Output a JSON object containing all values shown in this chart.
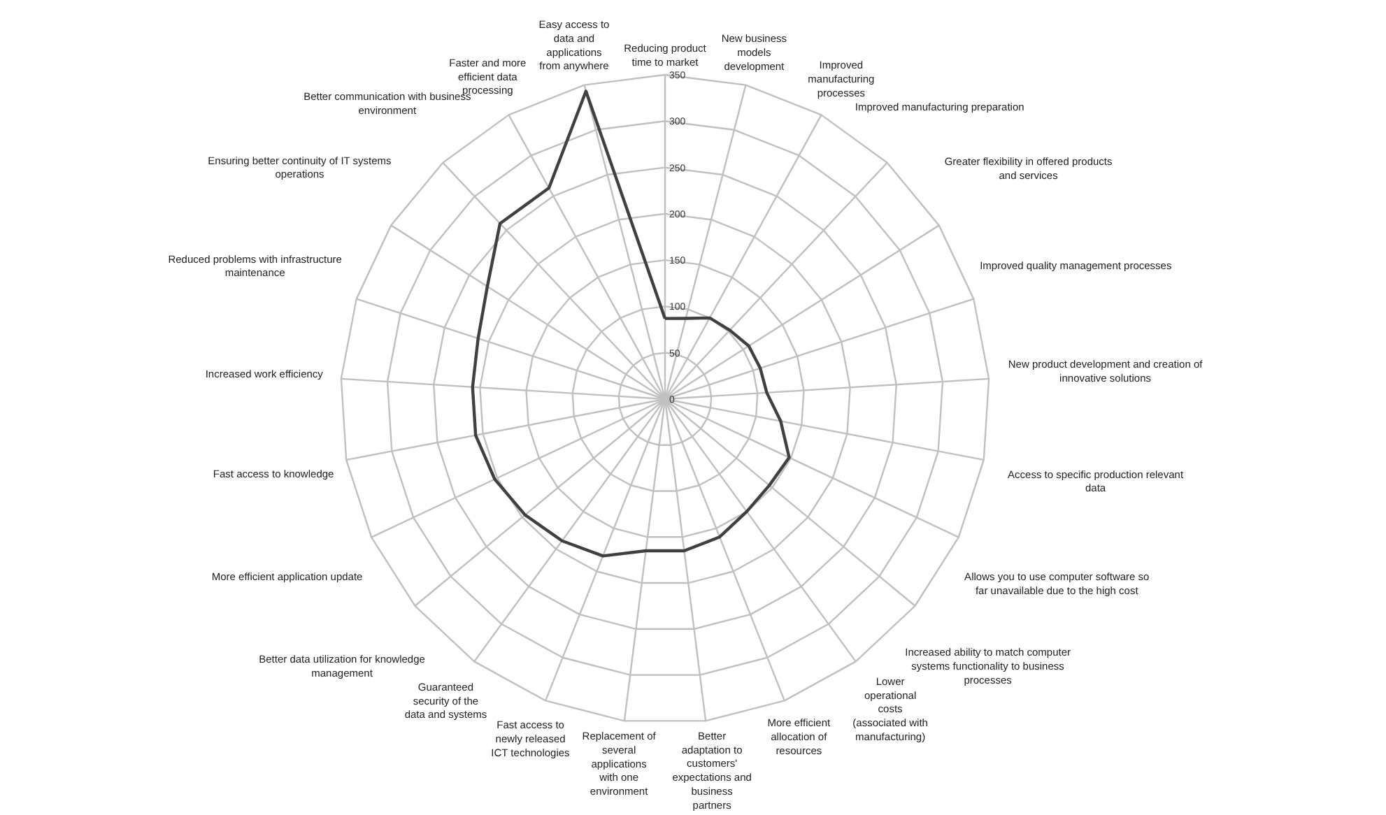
{
  "chart_data": {
    "type": "radar",
    "categories": [
      "Reducing product time to market",
      "New business models development",
      "Improved manufacturing processes",
      "Improved manufacturing preparation",
      "Greater flexibility in offered products and services",
      "Improved quality management processes",
      "New product development and creation of innovative solutions",
      "Access to specific production relevant data",
      "Allows you to use computer software so far unavailable due to the high cost",
      "Increased ability to match computer systems functionality to business processes",
      "Lower operational costs (associated with manufacturing)",
      "More efficient allocation of resources",
      "Better adaptation to customers' expectations and business partners",
      "Replacement of several applications with one environment",
      "Fast access to newly released ICT technologies",
      "Guaranteed security of the data and systems",
      "Better data utilization for knowledge management",
      "More efficient application update",
      "Fast access to knowledge",
      "Increased work efficiency",
      "Reduced problems with infrastructure maintenance",
      "Ensuring better continuity of IT systems operations",
      "Better communication with business environment",
      "Faster and more efficient data processing",
      "Easy access to data and applications from anywhere"
    ],
    "series": [
      {
        "color": "#404040",
        "values": [
          87,
          90,
          100,
          102,
          107,
          108,
          110,
          127,
          148,
          146,
          150,
          160,
          165,
          165,
          182,
          189,
          196,
          203,
          208,
          208,
          212,
          227,
          260,
          260,
          343
        ]
      }
    ],
    "ylim": [
      0,
      350
    ],
    "yticks": [
      0,
      50,
      100,
      150,
      200,
      250,
      300,
      350
    ],
    "grid": true,
    "marker": "none",
    "line_style": "solid"
  }
}
